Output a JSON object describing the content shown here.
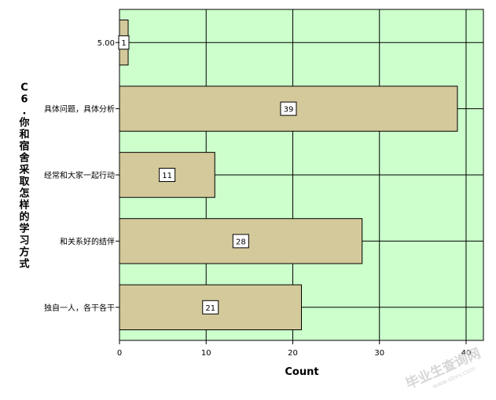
{
  "chart_data": {
    "type": "bar",
    "orientation": "horizontal",
    "categories": [
      "5.00",
      "具体问题，具体分析",
      "经常和大家一起行动",
      "和关系好的结伴",
      "独自一人，各干各干"
    ],
    "values": [
      1,
      39,
      11,
      28,
      21
    ],
    "data_labels": [
      "1",
      "39",
      "11",
      "28",
      "21"
    ],
    "ylabel": "C6.你和宿舍采取怎样的学习方式",
    "xlabel": "Count",
    "xlim": [
      0,
      42
    ],
    "xticks": [
      0,
      10,
      20,
      30,
      40
    ],
    "xtick_labels": [
      "0",
      "10",
      "20",
      "30",
      "40"
    ],
    "grid": true,
    "legend": "none",
    "colors": {
      "plot_background": "#ccffcc",
      "bar_fill": "#d4c99a",
      "bar_stroke": "#000000",
      "grid": "#000000",
      "watermark": "#c0c0c0"
    }
  },
  "watermark": {
    "main": "毕业生查询网",
    "sub": "www.sbvv.com"
  }
}
